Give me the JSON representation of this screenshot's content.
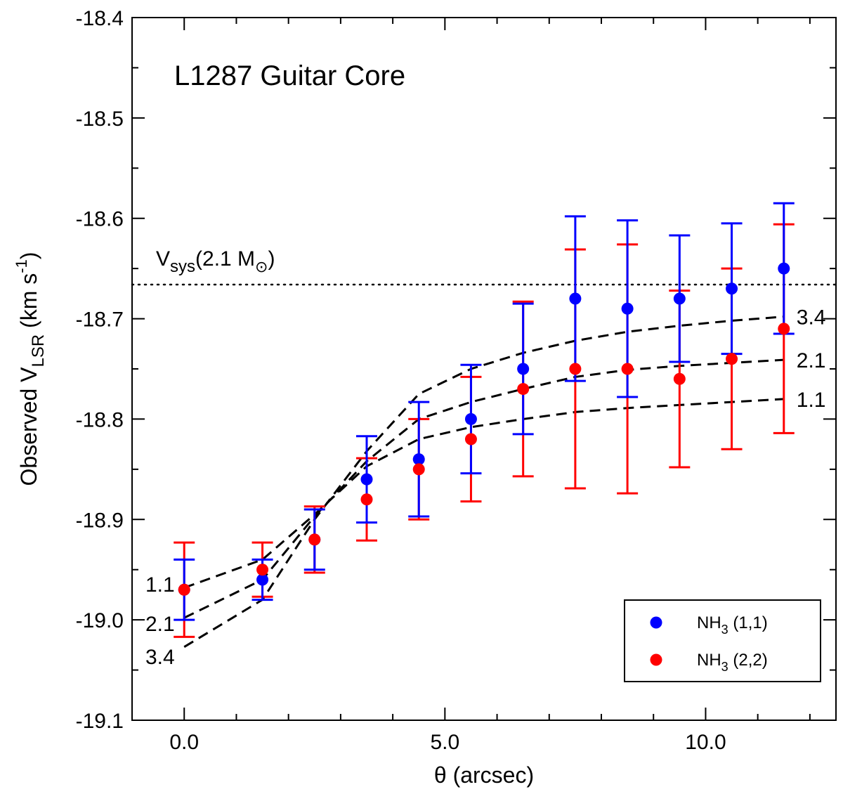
{
  "chart_data": {
    "type": "scatter",
    "title": "L1287 Guitar Core",
    "xlabel": "θ (arcsec)",
    "ylabel": "Observed V_LSR (km s^-1)",
    "ylabel_parts": {
      "prefix": "Observed V",
      "sub": "LSR",
      "unit_open": " (km s",
      "sup": "-1",
      "unit_close": ")"
    },
    "xlim": [
      -1.0,
      12.5
    ],
    "ylim": [
      -19.1,
      -18.4
    ],
    "x_ticks": [
      {
        "value": 0.0,
        "label": "0.0"
      },
      {
        "value": 5.0,
        "label": "5.0"
      },
      {
        "value": 10.0,
        "label": "10.0"
      }
    ],
    "x_minor_step": 1.0,
    "y_ticks": [
      {
        "value": -18.4,
        "label": "-18.4"
      },
      {
        "value": -18.5,
        "label": "-18.5"
      },
      {
        "value": -18.6,
        "label": "-18.6"
      },
      {
        "value": -18.7,
        "label": "-18.7"
      },
      {
        "value": -18.8,
        "label": "-18.8"
      },
      {
        "value": -18.9,
        "label": "-18.9"
      },
      {
        "value": -19.0,
        "label": "-19.0"
      },
      {
        "value": -19.1,
        "label": "-19.1"
      }
    ],
    "y_minor_step": 0.05,
    "grid": false,
    "legend_position": "bottom-right",
    "series": [
      {
        "name": "NH3 (1,1)",
        "legend_parts": {
          "prefix": "NH",
          "sub": "3",
          "suffix": " (1,1)"
        },
        "color": "#0000ff",
        "x": [
          0.0,
          1.5,
          2.5,
          3.5,
          4.5,
          5.5,
          6.5,
          7.5,
          8.5,
          9.5,
          10.5,
          11.5
        ],
        "y": [
          -18.97,
          -18.96,
          -18.92,
          -18.86,
          -18.84,
          -18.8,
          -18.75,
          -18.68,
          -18.69,
          -18.68,
          -18.67,
          -18.65
        ],
        "yerr": [
          0.03,
          0.02,
          0.03,
          0.043,
          0.057,
          0.054,
          0.065,
          0.082,
          0.088,
          0.063,
          0.065,
          0.065
        ]
      },
      {
        "name": "NH3 (2,2)",
        "legend_parts": {
          "prefix": "NH",
          "sub": "3",
          "suffix": " (2,2)"
        },
        "color": "#ff0000",
        "x": [
          0.0,
          1.5,
          2.5,
          3.5,
          4.5,
          5.5,
          6.5,
          7.5,
          8.5,
          9.5,
          10.5,
          11.5
        ],
        "y": [
          -18.97,
          -18.95,
          -18.92,
          -18.88,
          -18.85,
          -18.82,
          -18.77,
          -18.75,
          -18.75,
          -18.76,
          -18.74,
          -18.71
        ],
        "yerr": [
          0.047,
          0.027,
          0.033,
          0.041,
          0.05,
          0.062,
          0.087,
          0.119,
          0.124,
          0.088,
          0.09,
          0.104
        ]
      }
    ],
    "model_curves": [
      {
        "label": "1.1",
        "x": [
          0.0,
          1.5,
          2.5,
          3.5,
          4.5,
          5.5,
          6.5,
          7.5,
          8.5,
          9.5,
          10.5,
          11.5
        ],
        "y": [
          -18.968,
          -18.94,
          -18.895,
          -18.847,
          -18.82,
          -18.808,
          -18.8,
          -18.793,
          -18.789,
          -18.786,
          -18.783,
          -18.78
        ]
      },
      {
        "label": "2.1",
        "x": [
          0.0,
          1.5,
          2.5,
          3.5,
          4.5,
          5.5,
          6.5,
          7.5,
          8.5,
          9.5,
          10.5,
          11.5
        ],
        "y": [
          -18.998,
          -18.96,
          -18.897,
          -18.842,
          -18.8,
          -18.783,
          -18.77,
          -18.758,
          -18.751,
          -18.747,
          -18.744,
          -18.741
        ]
      },
      {
        "label": "3.4",
        "x": [
          0.0,
          1.5,
          2.5,
          3.5,
          4.5,
          5.5,
          6.5,
          7.5,
          8.5,
          9.5,
          10.5,
          11.5
        ],
        "y": [
          -19.027,
          -18.98,
          -18.9,
          -18.832,
          -18.775,
          -18.75,
          -18.734,
          -18.722,
          -18.713,
          -18.707,
          -18.702,
          -18.698
        ]
      }
    ],
    "curve_start_labels": [
      "1.1",
      "2.1",
      "3.4"
    ],
    "reference_line": {
      "y": -18.666,
      "style": "dotted",
      "label_parts": {
        "prefix": "V",
        "sub": "sys",
        "middle": "(2.1 M",
        "sub2": "⊙",
        "suffix": ")"
      }
    }
  }
}
